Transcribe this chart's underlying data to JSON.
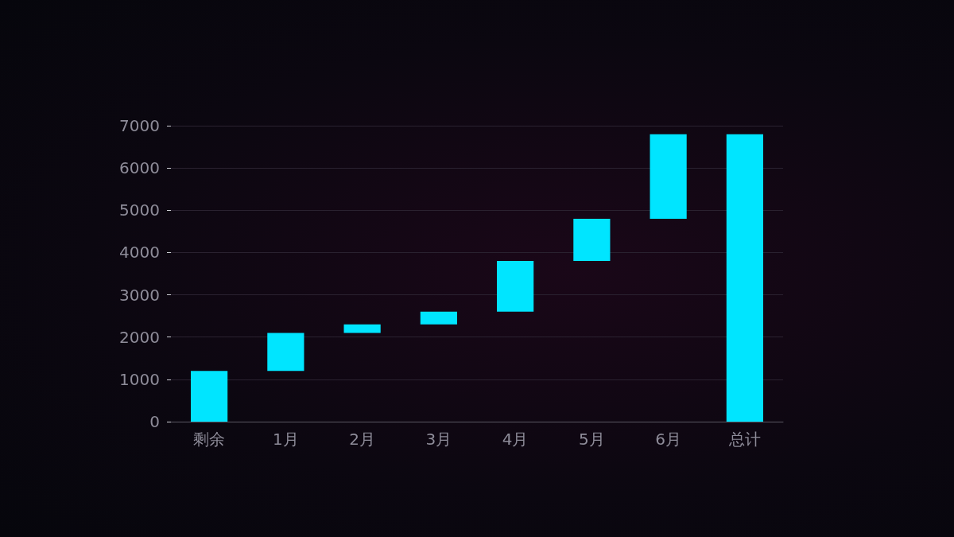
{
  "chart_data": {
    "type": "bar",
    "categories": [
      "剩余",
      "1月",
      "2月",
      "3月",
      "4月",
      "5月",
      "6月",
      "总计"
    ],
    "values": [
      1200,
      900,
      200,
      300,
      1200,
      1000,
      2000,
      6800
    ],
    "base": [
      0,
      1200,
      2100,
      2300,
      2600,
      3800,
      4800,
      0
    ],
    "color": "#00e5ff",
    "ylim": [
      0,
      7000
    ],
    "yticks": [
      0,
      1000,
      2000,
      3000,
      4000,
      5000,
      6000,
      7000
    ],
    "grid": "y"
  }
}
